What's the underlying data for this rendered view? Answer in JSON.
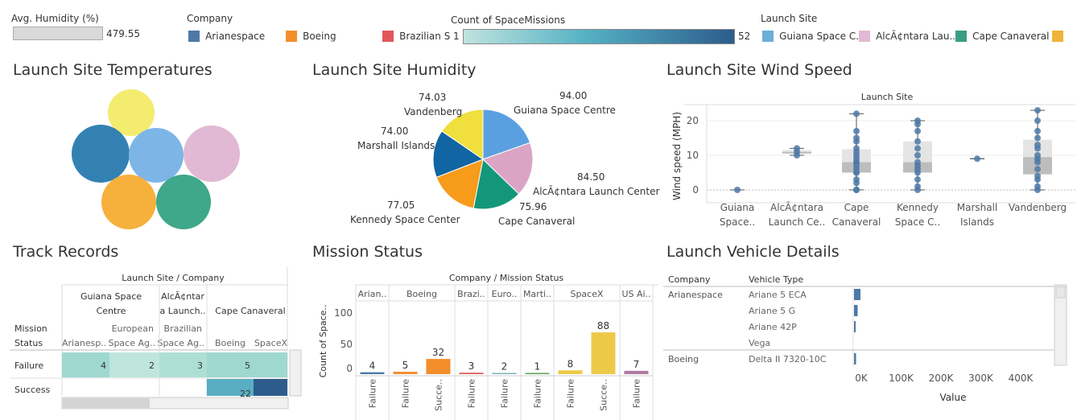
{
  "legends": {
    "humidity": {
      "title": "Avg. Humidity (%)",
      "value": "479.55"
    },
    "company": {
      "title": "Company",
      "items": [
        {
          "label": "Arianespace",
          "color": "#4e79a7"
        },
        {
          "label": "Boeing",
          "color": "#f28e2b"
        },
        {
          "label": "Brazilian S",
          "color": "#e15759"
        }
      ]
    },
    "count": {
      "title": "Count of SpaceMissions",
      "min": "1",
      "max": "52"
    },
    "launch_site": {
      "title": "Launch Site",
      "items": [
        {
          "label": "Guiana Space C..",
          "color": "#6baed6"
        },
        {
          "label": "AlcÃ¢ntara Lau..",
          "color": "#e2b9d4"
        },
        {
          "label": "Cape Canaveral",
          "color": "#3a9e84"
        },
        {
          "label": "",
          "color": "#f0b43c"
        }
      ]
    }
  },
  "titles": {
    "temps": "Launch Site Temperatures",
    "humidity": "Launch Site Humidity",
    "wind": "Launch Site Wind Speed",
    "track": "Track Records",
    "mission": "Mission Status",
    "vehicle": "Launch Vehicle Details"
  },
  "temps": {
    "bubbles": [
      {
        "color": "#f4ec6e"
      },
      {
        "color": "#3381b3"
      },
      {
        "color": "#7db6e6"
      },
      {
        "color": "#e2b9d4"
      },
      {
        "color": "#f6b03c"
      },
      {
        "color": "#3fa88a"
      }
    ]
  },
  "humidity_pie": {
    "slices": [
      {
        "name": "Guiana Space Centre",
        "value": "94.00",
        "color": "#5aa0e0"
      },
      {
        "name": "AlcÃ¢ntara Launch Center",
        "value": "84.50",
        "color": "#dba4c4"
      },
      {
        "name": "Cape Canaveral",
        "value": "75.96",
        "color": "#13977a"
      },
      {
        "name": "Kennedy Space Center",
        "value": "77.05",
        "color": "#f69b1a"
      },
      {
        "name": "Marshall Islands",
        "value": "74.00",
        "color": "#1165a3"
      },
      {
        "name": "Vandenberg",
        "value": "74.03",
        "color": "#f0df3c"
      }
    ]
  },
  "wind": {
    "header": "Launch Site",
    "ylabel": "Wind speed (MPH)",
    "yticks": [
      "20",
      "10",
      "0"
    ],
    "categories": [
      {
        "line1": "Guiana",
        "line2": "Space.."
      },
      {
        "line1": "AlcÃ¢ntara",
        "line2": "Launch Ce.."
      },
      {
        "line1": "Cape",
        "line2": "Canaveral"
      },
      {
        "line1": "Kennedy",
        "line2": "Space C.."
      },
      {
        "line1": "Marshall",
        "line2": "Islands"
      },
      {
        "line1": "Vandenberg",
        "line2": ""
      }
    ]
  },
  "chart_data": [
    {
      "type": "pie",
      "title": "Launch Site Humidity",
      "labels": [
        "Guiana Space Centre",
        "AlcÃ¢ntara Launch Center",
        "Cape Canaveral",
        "Kennedy Space Center",
        "Marshall Islands",
        "Vandenberg"
      ],
      "values": [
        94.0,
        84.5,
        75.96,
        77.05,
        74.0,
        74.03
      ]
    },
    {
      "type": "scatter",
      "title": "Launch Site Wind Speed",
      "ylabel": "Wind speed (MPH)",
      "ylim": [
        0,
        24
      ],
      "series": [
        {
          "category": "Guiana Space..",
          "values": [
            0
          ]
        },
        {
          "category": "AlcÃ¢ntara Launch Ce..",
          "values": [
            10,
            11,
            12
          ]
        },
        {
          "category": "Cape Canaveral",
          "values": [
            0,
            0,
            2,
            3,
            5,
            5,
            6,
            7,
            8,
            8,
            9,
            10,
            11,
            12,
            14,
            15,
            17,
            22
          ]
        },
        {
          "category": "Kennedy Space C..",
          "values": [
            0,
            1,
            3,
            5,
            6,
            7,
            8,
            10,
            12,
            14,
            17,
            19,
            20
          ]
        },
        {
          "category": "Marshall Islands",
          "values": [
            9
          ]
        },
        {
          "category": "Vandenberg",
          "values": [
            0,
            1,
            3,
            4,
            6,
            8,
            9,
            10,
            12,
            13,
            15,
            17,
            20,
            23
          ]
        }
      ]
    },
    {
      "type": "bar",
      "title": "Mission Status",
      "ylabel": "Count of Space..",
      "ylim": [
        0,
        135
      ],
      "groups": [
        {
          "company": "Arian..",
          "bars": [
            {
              "status": "Failure",
              "value": 4,
              "color": "#4e79a7"
            }
          ]
        },
        {
          "company": "Boeing",
          "bars": [
            {
              "status": "Failure",
              "value": 5,
              "color": "#f28e2b"
            },
            {
              "status": "Succe..",
              "value": 32,
              "color": "#f28e2b"
            }
          ]
        },
        {
          "company": "Brazi..",
          "bars": [
            {
              "status": "Failure",
              "value": 3,
              "color": "#e15759"
            }
          ]
        },
        {
          "company": "Euro..",
          "bars": [
            {
              "status": "Failure",
              "value": 2,
              "color": "#76b7b2"
            }
          ]
        },
        {
          "company": "Marti..",
          "bars": [
            {
              "status": "Failure",
              "value": 1,
              "color": "#59a14f"
            }
          ]
        },
        {
          "company": "SpaceX",
          "bars": [
            {
              "status": "Failure",
              "value": 8,
              "color": "#edc948"
            },
            {
              "status": "Succe..",
              "value": 88,
              "color": "#edc948"
            }
          ]
        },
        {
          "company": "US Ai..",
          "bars": [
            {
              "status": "Failure",
              "value": 7,
              "color": "#b07aa1"
            }
          ]
        }
      ]
    },
    {
      "type": "bar",
      "title": "Launch Vehicle Details",
      "xlabel": "Value",
      "xticks": [
        "0K",
        "100K",
        "200K",
        "300K",
        "400K"
      ],
      "rows": [
        {
          "company": "Arianespace",
          "vehicle": "Ariane 5 ECA",
          "value": 16000
        },
        {
          "company": "",
          "vehicle": "Ariane 5 G",
          "value": 9000
        },
        {
          "company": "",
          "vehicle": "Ariane 42P",
          "value": 3000
        },
        {
          "company": "",
          "vehicle": "Vega",
          "value": 0
        },
        {
          "company": "Boeing",
          "vehicle": "Delta II 7320-10C",
          "value": 5000
        }
      ]
    },
    {
      "type": "table",
      "title": "Track Records",
      "columns": [
        {
          "site": "Guiana Space Centre",
          "company": "Arianesp..",
          "failure": "4",
          "success": ""
        },
        {
          "site": "",
          "company": "European Space Ag..",
          "failure": "2",
          "success": ""
        },
        {
          "site": "AlcÃ¢ntara Launch..",
          "company": "Brazilian Space Ag..",
          "failure": "3",
          "success": ""
        },
        {
          "site": "Cape Canaveral",
          "company": "Boeing",
          "failure": "5",
          "success": ""
        },
        {
          "site": "",
          "company": "SpaceX",
          "failure": "",
          "success": "22"
        }
      ]
    }
  ],
  "track": {
    "header": "Launch Site  /  Company",
    "row_header_1": "Mission",
    "row_header_2": "Status",
    "site1_l1": "Guiana Space",
    "site1_l2": "Centre",
    "site2_l1": "AlcÃ¢ntar",
    "site2_l2": "a Launch..",
    "site3": "Cape Canaveral",
    "comp1": "Arianesp..",
    "comp2_l1": "European",
    "comp2_l2": "Space Ag..",
    "comp3_l1": "Brazilian",
    "comp3_l2": "Space Ag..",
    "comp4": "Boeing",
    "comp5": "SpaceX",
    "row_failure": "Failure",
    "row_success": "Success",
    "v_ar_f": "4",
    "v_es_f": "2",
    "v_br_f": "3",
    "v_bo_f": "5",
    "v_sx_s": "22"
  },
  "mission": {
    "header": "Company  /  Mission Status",
    "ylabel": "Count of Space..",
    "yticks": [
      "100",
      "50",
      "0"
    ]
  },
  "vehicle": {
    "col_company": "Company",
    "col_vehicle": "Vehicle Type",
    "xlabel": "Value"
  }
}
